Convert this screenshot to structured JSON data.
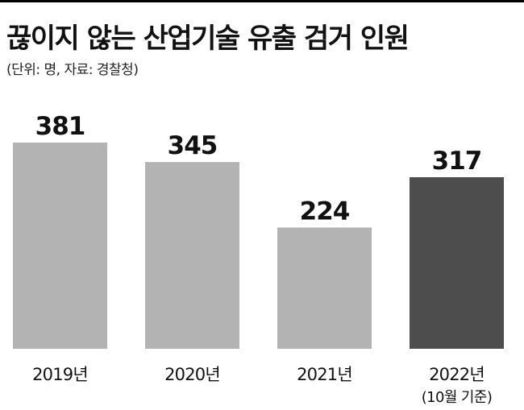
{
  "header": {
    "title": "끊이지 않는 산업기술 유출 검거 인원",
    "subtitle": "(단위: 명, 자료: 경찰청)"
  },
  "colors": {
    "bar_default": "#b3b3b3",
    "bar_highlight": "#4d4d4d",
    "text": "#111111"
  },
  "chart_data": {
    "type": "bar",
    "title": "끊이지 않는 산업기술 유출 검거 인원",
    "subtitle": "(단위: 명, 자료: 경찰청)",
    "categories": [
      "2019년",
      "2020년",
      "2021년",
      "2022년"
    ],
    "category_notes": [
      "",
      "",
      "",
      "(10월 기준)"
    ],
    "values": [
      381,
      345,
      224,
      317
    ],
    "data_labels": [
      "381",
      "345",
      "224",
      "317"
    ],
    "highlight_index": 3,
    "ylim": [
      0,
      381
    ],
    "grid": false,
    "legend": "none"
  }
}
